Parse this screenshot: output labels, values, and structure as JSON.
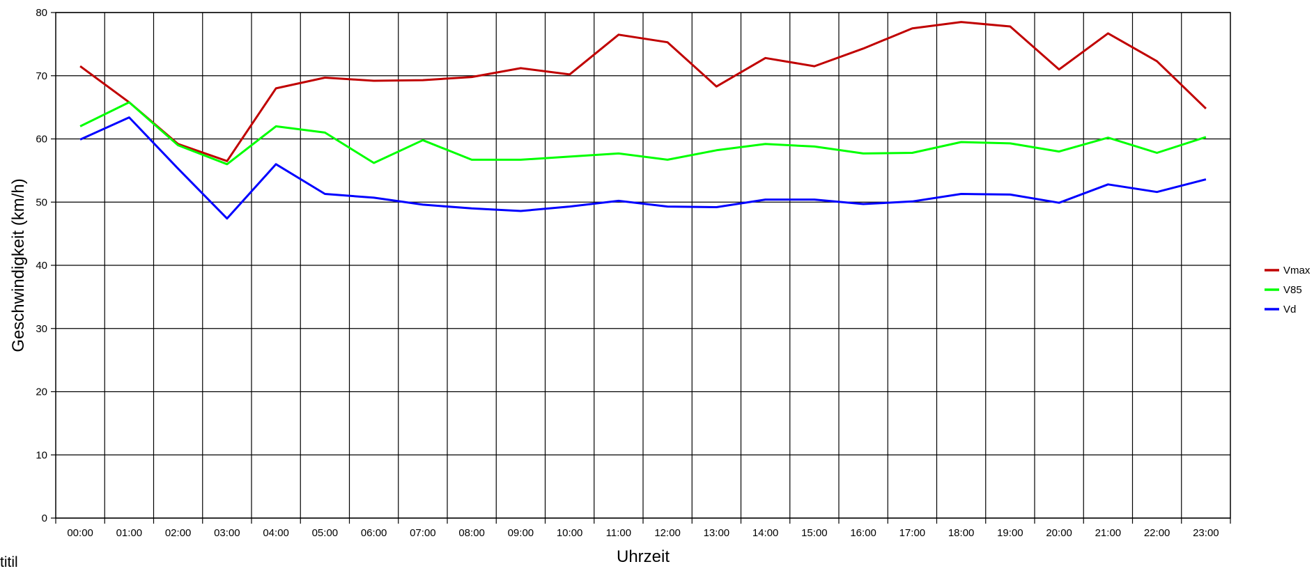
{
  "chart_data": {
    "type": "line",
    "xlabel": "Uhrzeit",
    "ylabel": "Geschwindigkeit (km/h)",
    "ylim": [
      0,
      80
    ],
    "yticks": [
      0,
      10,
      20,
      30,
      40,
      50,
      60,
      70,
      80
    ],
    "grid": true,
    "legend": "right",
    "categories": [
      "00:00",
      "01:00",
      "02:00",
      "03:00",
      "04:00",
      "05:00",
      "06:00",
      "07:00",
      "08:00",
      "09:00",
      "10:00",
      "11:00",
      "12:00",
      "13:00",
      "14:00",
      "15:00",
      "16:00",
      "17:00",
      "18:00",
      "19:00",
      "20:00",
      "21:00",
      "22:00",
      "23:00"
    ],
    "series": [
      {
        "name": "Vmax",
        "color": "#c00000",
        "values": [
          71.5,
          65.8,
          59.2,
          56.5,
          68.0,
          69.7,
          69.2,
          69.3,
          69.8,
          71.2,
          70.2,
          76.5,
          75.3,
          68.3,
          72.8,
          71.5,
          74.3,
          77.5,
          78.5,
          77.8,
          71.0,
          76.7,
          72.3,
          64.8
        ]
      },
      {
        "name": "V85",
        "color": "#00ff00",
        "values": [
          62.0,
          65.8,
          59.0,
          56.0,
          62.0,
          61.0,
          56.2,
          59.8,
          56.7,
          56.7,
          57.2,
          57.7,
          56.7,
          58.2,
          59.2,
          58.8,
          57.7,
          57.8,
          59.5,
          59.3,
          58.0,
          60.2,
          57.8,
          60.3
        ]
      },
      {
        "name": "Vd",
        "color": "#0000ff",
        "values": [
          59.9,
          63.4,
          55.3,
          47.4,
          56.0,
          51.3,
          50.7,
          49.6,
          49.0,
          48.6,
          49.3,
          50.2,
          49.3,
          49.2,
          50.4,
          50.4,
          49.7,
          50.1,
          51.3,
          51.2,
          49.9,
          52.8,
          51.6,
          53.6
        ]
      }
    ]
  },
  "footnote": "titil"
}
